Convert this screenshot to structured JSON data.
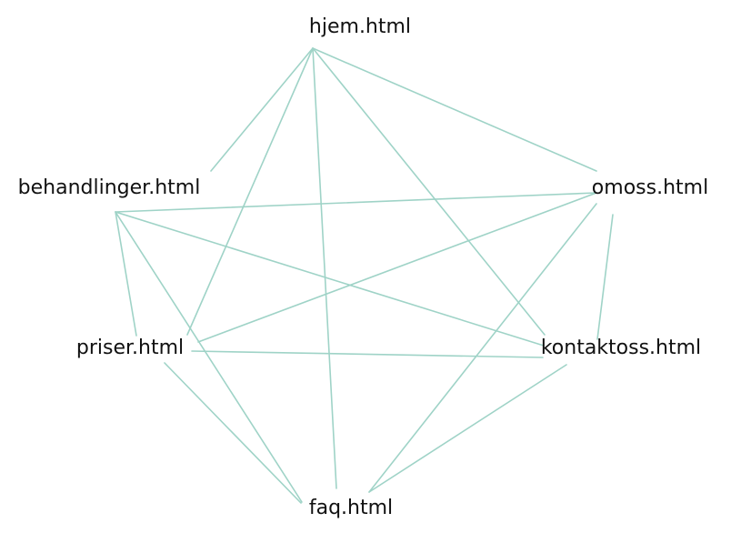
{
  "diagram": {
    "type": "site-link-graph",
    "colors": {
      "edge": "#9fd3c7",
      "label": "#111111",
      "background": "#ffffff"
    },
    "nodes": [
      {
        "id": "hjem",
        "label": "hjem.html"
      },
      {
        "id": "behandlinger",
        "label": "behandlinger.html"
      },
      {
        "id": "omoss",
        "label": "omoss.html"
      },
      {
        "id": "priser",
        "label": "priser.html"
      },
      {
        "id": "kontaktoss",
        "label": "kontaktoss.html"
      },
      {
        "id": "faq",
        "label": "faq.html"
      }
    ],
    "edges": [
      {
        "from": "hjem",
        "to": "behandlinger"
      },
      {
        "from": "hjem",
        "to": "omoss"
      },
      {
        "from": "hjem",
        "to": "priser"
      },
      {
        "from": "hjem",
        "to": "kontaktoss"
      },
      {
        "from": "hjem",
        "to": "faq"
      },
      {
        "from": "behandlinger",
        "to": "omoss"
      },
      {
        "from": "behandlinger",
        "to": "priser"
      },
      {
        "from": "behandlinger",
        "to": "kontaktoss"
      },
      {
        "from": "behandlinger",
        "to": "faq"
      },
      {
        "from": "omoss",
        "to": "priser"
      },
      {
        "from": "omoss",
        "to": "kontaktoss"
      },
      {
        "from": "omoss",
        "to": "faq"
      },
      {
        "from": "priser",
        "to": "kontaktoss"
      },
      {
        "from": "priser",
        "to": "faq"
      },
      {
        "from": "kontaktoss",
        "to": "faq"
      }
    ]
  }
}
